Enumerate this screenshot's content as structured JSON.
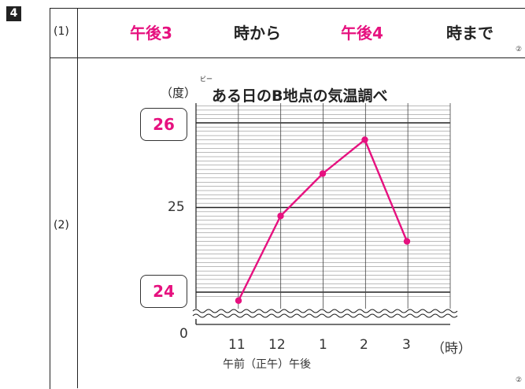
{
  "question_number": "4",
  "part1": {
    "label": "(1)",
    "answer_start": "午後3",
    "text_from": "時から",
    "answer_end": "午後4",
    "text_to": "時まで",
    "mark": "②"
  },
  "part2": {
    "label": "(2)",
    "mark": "②"
  },
  "chart_data": {
    "type": "line",
    "title": "ある日のB地点の気温調べ",
    "title_ruby": "ビー",
    "ylabel": "（度）",
    "xlabel": "（時）",
    "x_sublabel": "午前（正午）午後",
    "categories": [
      "11",
      "12",
      "1",
      "2",
      "3"
    ],
    "y_ticks": [
      "0",
      "25"
    ],
    "y_answer_boxes": [
      "26",
      "24"
    ],
    "ylim": [
      24,
      26
    ],
    "axis_break": true,
    "grid": true,
    "values": [
      23.9,
      24.9,
      25.4,
      25.8,
      24.6
    ],
    "color": "#e6117f"
  }
}
